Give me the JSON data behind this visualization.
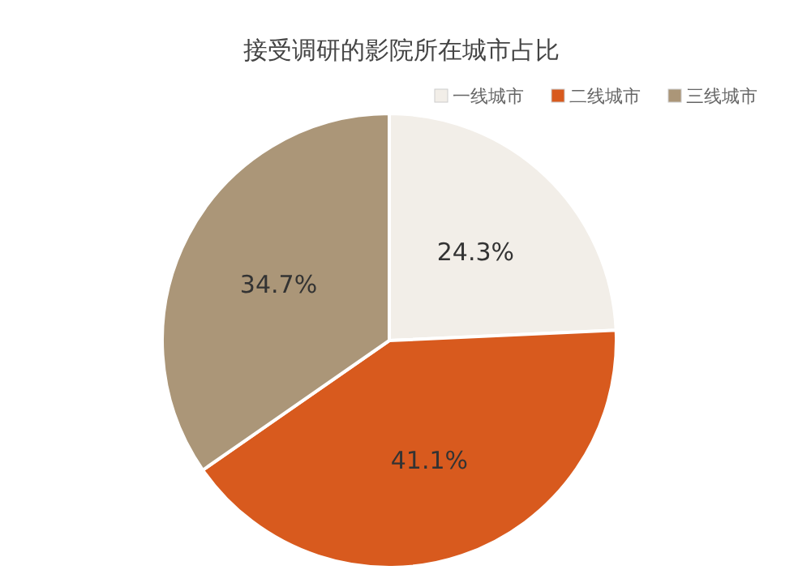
{
  "chart_data": {
    "type": "pie",
    "title": "接受调研的影院所在城市占比",
    "categories": [
      "一线城市",
      "二线城市",
      "三线城市"
    ],
    "values": [
      24.3,
      41.1,
      34.7
    ],
    "colors": [
      "#f2eee8",
      "#d85a1e",
      "#ab9678"
    ],
    "value_labels": [
      "24.3%",
      "41.1%",
      "34.7%"
    ],
    "legend": "top right"
  }
}
